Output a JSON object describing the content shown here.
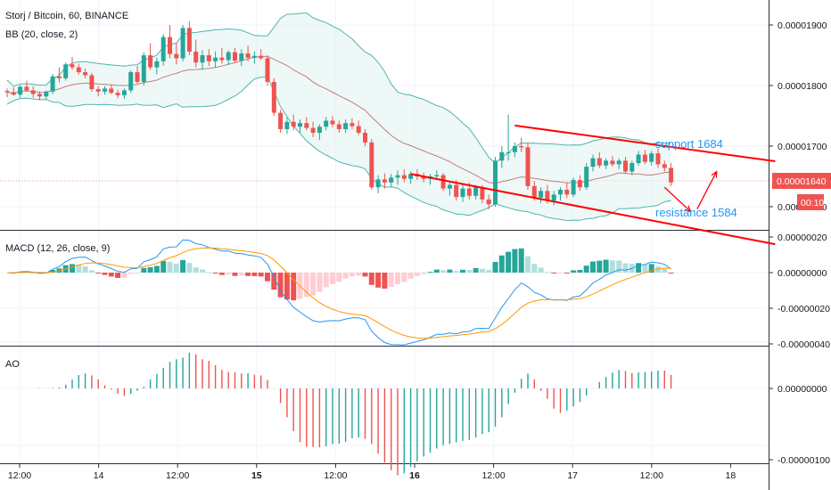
{
  "header": {
    "symbol": "Storj / Bitcoin, 60, BINANCE",
    "bb_label": "BB (20, close, 2)",
    "macd_label": "MACD (12, 26, close, 9)",
    "ao_label": "AO"
  },
  "annotations": {
    "support": "support 1684",
    "resistance": "resistance 1584"
  },
  "price_tag": {
    "value": "0.00001640",
    "countdown": "00:10"
  },
  "colors": {
    "up": "#26a69a",
    "down": "#ef5350",
    "bb": "#4db6ac",
    "basis": "#b24a4a",
    "macd": "#2196f3",
    "signal": "#ff9800",
    "hist_up": "#26a69a",
    "hist_up_weak": "#b2dfdb",
    "hist_down": "#ef5350",
    "hist_down_weak": "#ffcdd2",
    "channel": "#ff0000",
    "annotation": "#2196f3"
  },
  "chart_data": {
    "type": "candlestick",
    "instrument": "Storj / Bitcoin, 60, BINANCE",
    "price_axis": {
      "ticks": [
        "0.00001900",
        "0.00001800",
        "0.00001700",
        "0.00001600"
      ],
      "values": [
        1.9e-05,
        1.8e-05,
        1.7e-05,
        1.6e-05
      ]
    },
    "macd_axis": {
      "ticks": [
        "0.00000020",
        "0.00000000",
        "-0.00000020",
        "-0.00000040"
      ],
      "values": [
        2e-07,
        0,
        -2e-07,
        -4e-07
      ]
    },
    "ao_axis": {
      "ticks": [
        "0.00000000",
        "-0.00000100"
      ],
      "values": [
        0,
        -1e-06
      ]
    },
    "time_axis": {
      "ticks": [
        "12:00",
        "14",
        "12:00",
        "15",
        "12:00",
        "16",
        "12:00",
        "17",
        "12:00",
        "18"
      ],
      "bold": [
        "15",
        "16"
      ]
    },
    "x_step_bars_per_12h": 12,
    "ohlc": [
      [
        1.791,
        1.795,
        1.781,
        1.789
      ],
      [
        1.789,
        1.797,
        1.783,
        1.785
      ],
      [
        1.785,
        1.801,
        1.78,
        1.798
      ],
      [
        1.798,
        1.808,
        1.79,
        1.792
      ],
      [
        1.792,
        1.799,
        1.78,
        1.786
      ],
      [
        1.786,
        1.79,
        1.776,
        1.782
      ],
      [
        1.782,
        1.792,
        1.777,
        1.79
      ],
      [
        1.79,
        1.819,
        1.786,
        1.815
      ],
      [
        1.815,
        1.83,
        1.805,
        1.812
      ],
      [
        1.812,
        1.838,
        1.808,
        1.835
      ],
      [
        1.835,
        1.847,
        1.826,
        1.83
      ],
      [
        1.83,
        1.836,
        1.818,
        1.822
      ],
      [
        1.822,
        1.828,
        1.812,
        1.817
      ],
      [
        1.817,
        1.821,
        1.79,
        1.794
      ],
      [
        1.794,
        1.799,
        1.782,
        1.79
      ],
      [
        1.79,
        1.799,
        1.785,
        1.795
      ],
      [
        1.795,
        1.802,
        1.786,
        1.788
      ],
      [
        1.788,
        1.793,
        1.779,
        1.784
      ],
      [
        1.784,
        1.795,
        1.778,
        1.792
      ],
      [
        1.792,
        1.825,
        1.788,
        1.822
      ],
      [
        1.822,
        1.832,
        1.803,
        1.806
      ],
      [
        1.806,
        1.855,
        1.8,
        1.85
      ],
      [
        1.85,
        1.87,
        1.826,
        1.83
      ],
      [
        1.83,
        1.846,
        1.818,
        1.84
      ],
      [
        1.84,
        1.885,
        1.833,
        1.88
      ],
      [
        1.88,
        1.9,
        1.845,
        1.852
      ],
      [
        1.852,
        1.87,
        1.835,
        1.845
      ],
      [
        1.845,
        1.9,
        1.84,
        1.895
      ],
      [
        1.895,
        1.906,
        1.85,
        1.856
      ],
      [
        1.856,
        1.876,
        1.83,
        1.838
      ],
      [
        1.838,
        1.858,
        1.826,
        1.85
      ],
      [
        1.85,
        1.86,
        1.832,
        1.84
      ],
      [
        1.84,
        1.856,
        1.83,
        1.846
      ],
      [
        1.846,
        1.862,
        1.836,
        1.842
      ],
      [
        1.842,
        1.858,
        1.834,
        1.855
      ],
      [
        1.855,
        1.862,
        1.838,
        1.841
      ],
      [
        1.841,
        1.86,
        1.832,
        1.853
      ],
      [
        1.853,
        1.866,
        1.84,
        1.846
      ],
      [
        1.846,
        1.856,
        1.836,
        1.849
      ],
      [
        1.849,
        1.86,
        1.842,
        1.845
      ],
      [
        1.845,
        1.85,
        1.8,
        1.806
      ],
      [
        1.806,
        1.812,
        1.75,
        1.755
      ],
      [
        1.755,
        1.76,
        1.722,
        1.728
      ],
      [
        1.728,
        1.748,
        1.72,
        1.74
      ],
      [
        1.74,
        1.752,
        1.726,
        1.732
      ],
      [
        1.732,
        1.744,
        1.722,
        1.738
      ],
      [
        1.738,
        1.748,
        1.726,
        1.73
      ],
      [
        1.73,
        1.74,
        1.715,
        1.722
      ],
      [
        1.722,
        1.736,
        1.71,
        1.732
      ],
      [
        1.732,
        1.748,
        1.726,
        1.742
      ],
      [
        1.742,
        1.75,
        1.731,
        1.736
      ],
      [
        1.736,
        1.742,
        1.722,
        1.728
      ],
      [
        1.728,
        1.744,
        1.722,
        1.738
      ],
      [
        1.738,
        1.746,
        1.728,
        1.733
      ],
      [
        1.733,
        1.742,
        1.718,
        1.722
      ],
      [
        1.722,
        1.728,
        1.7,
        1.706
      ],
      [
        1.706,
        1.712,
        1.628,
        1.632
      ],
      [
        1.632,
        1.652,
        1.622,
        1.645
      ],
      [
        1.645,
        1.655,
        1.63,
        1.64
      ],
      [
        1.64,
        1.654,
        1.632,
        1.648
      ],
      [
        1.648,
        1.66,
        1.636,
        1.652
      ],
      [
        1.652,
        1.662,
        1.64,
        1.646
      ],
      [
        1.646,
        1.658,
        1.638,
        1.654
      ],
      [
        1.654,
        1.662,
        1.644,
        1.65
      ],
      [
        1.65,
        1.656,
        1.64,
        1.646
      ],
      [
        1.646,
        1.654,
        1.636,
        1.65
      ],
      [
        1.65,
        1.66,
        1.644,
        1.652
      ],
      [
        1.652,
        1.656,
        1.626,
        1.63
      ],
      [
        1.63,
        1.642,
        1.618,
        1.636
      ],
      [
        1.636,
        1.644,
        1.61,
        1.616
      ],
      [
        1.616,
        1.636,
        1.608,
        1.63
      ],
      [
        1.63,
        1.64,
        1.612,
        1.618
      ],
      [
        1.618,
        1.636,
        1.612,
        1.632
      ],
      [
        1.632,
        1.636,
        1.606,
        1.612
      ],
      [
        1.612,
        1.62,
        1.596,
        1.604
      ],
      [
        1.604,
        1.682,
        1.6,
        1.676
      ],
      [
        1.676,
        1.7,
        1.664,
        1.69
      ],
      [
        1.69,
        1.752,
        1.676,
        1.69
      ],
      [
        1.69,
        1.706,
        1.682,
        1.7
      ],
      [
        1.7,
        1.714,
        1.69,
        1.698
      ],
      [
        1.698,
        1.706,
        1.628,
        1.634
      ],
      [
        1.634,
        1.642,
        1.61,
        1.615
      ],
      [
        1.615,
        1.632,
        1.606,
        1.626
      ],
      [
        1.626,
        1.636,
        1.605,
        1.61
      ],
      [
        1.61,
        1.626,
        1.602,
        1.62
      ],
      [
        1.62,
        1.632,
        1.61,
        1.628
      ],
      [
        1.628,
        1.64,
        1.614,
        1.62
      ],
      [
        1.62,
        1.648,
        1.616,
        1.644
      ],
      [
        1.644,
        1.652,
        1.626,
        1.632
      ],
      [
        1.632,
        1.672,
        1.628,
        1.666
      ],
      [
        1.666,
        1.686,
        1.658,
        1.68
      ],
      [
        1.68,
        1.69,
        1.664,
        1.668
      ],
      [
        1.668,
        1.68,
        1.662,
        1.676
      ],
      [
        1.676,
        1.684,
        1.666,
        1.67
      ],
      [
        1.67,
        1.68,
        1.662,
        1.676
      ],
      [
        1.676,
        1.682,
        1.654,
        1.658
      ],
      [
        1.658,
        1.676,
        1.652,
        1.672
      ],
      [
        1.672,
        1.692,
        1.668,
        1.686
      ],
      [
        1.686,
        1.694,
        1.67,
        1.674
      ],
      [
        1.674,
        1.692,
        1.668,
        1.688
      ],
      [
        1.688,
        1.696,
        1.664,
        1.67
      ],
      [
        1.67,
        1.676,
        1.658,
        1.664
      ],
      [
        1.664,
        1.672,
        1.634,
        1.64
      ]
    ],
    "channel_lines": [
      {
        "name": "support 1684",
        "from": [
          78,
          1.734
        ],
        "to": [
          118,
          1.675
        ]
      },
      {
        "name": "resistance 1584",
        "from": [
          62,
          1.654
        ],
        "to": [
          118,
          1.538
        ]
      }
    ],
    "projection_arrows": [
      [
        101,
        1.632,
        105,
        1.592
      ],
      [
        106,
        1.596,
        109,
        1.658
      ]
    ]
  }
}
